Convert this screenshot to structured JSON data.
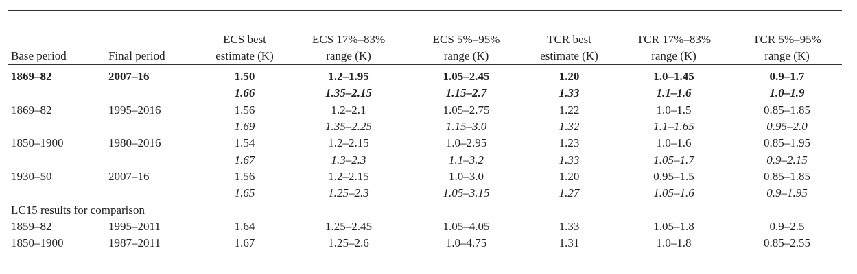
{
  "headers": {
    "base_period": "Base period",
    "final_period": "Final period",
    "ecs_best_1": "ECS best",
    "ecs_best_2": "estimate (K)",
    "ecs_17_1": "ECS 17%–83%",
    "ecs_17_2": "range (K)",
    "ecs_5_1": "ECS 5%–95%",
    "ecs_5_2": "range (K)",
    "tcr_best_1": "TCR best",
    "tcr_best_2": "estimate (K)",
    "tcr_17_1": "TCR 17%–83%",
    "tcr_17_2": "range (K)",
    "tcr_5_1": "TCR 5%–95%",
    "tcr_5_2": "range (K)"
  },
  "rows": [
    [
      "1869–82",
      "2007–16",
      "1.50",
      "1.2–1.95",
      "1.05–2.45",
      "1.20",
      "1.0–1.45",
      "0.9–1.7"
    ],
    [
      "",
      "",
      "1.66",
      "1.35–2.15",
      "1.15–2.7",
      "1.33",
      "1.1–1.6",
      "1.0–1.9"
    ],
    [
      "1869–82",
      "1995–2016",
      "1.56",
      "1.2–2.1",
      "1.05–2.75",
      "1.22",
      "1.0–1.5",
      "0.85–1.85"
    ],
    [
      "",
      "",
      "1.69",
      "1.35–2.25",
      "1.15–3.0",
      "1.32",
      "1.1–1.65",
      "0.95–2.0"
    ],
    [
      "1850–1900",
      "1980–2016",
      "1.54",
      "1.2–2.15",
      "1.0–2.95",
      "1.23",
      "1.0–1.6",
      "0.85–1.95"
    ],
    [
      "",
      "",
      "1.67",
      "1.3–2.3",
      "1.1–3.2",
      "1.33",
      "1.05–1.7",
      "0.9–2.15"
    ],
    [
      "1930–50",
      "2007–16",
      "1.56",
      "1.2–2.15",
      "1.0–3.0",
      "1.20",
      "0.95–1.5",
      "0.85–1.85"
    ],
    [
      "",
      "",
      "1.65",
      "1.25–2.3",
      "1.05–3.15",
      "1.27",
      "1.05–1.6",
      "0.9–1.95"
    ],
    [
      "1859–82",
      "1995–2011",
      "1.64",
      "1.25–2.45",
      "1.05–4.05",
      "1.33",
      "1.05–1.8",
      "0.9–2.5"
    ],
    [
      "1850–1900",
      "1987–2011",
      "1.67",
      "1.25–2.6",
      "1.0–4.75",
      "1.31",
      "1.0–1.8",
      "0.85–2.55"
    ]
  ],
  "comparison_label": "LC15 results for comparison"
}
